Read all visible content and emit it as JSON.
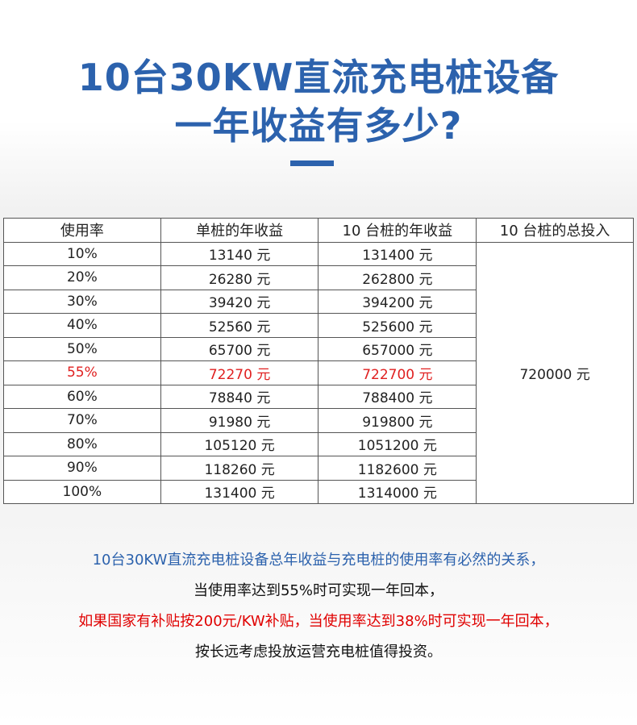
{
  "title": {
    "line1": "10台30KW直流充电桩设备",
    "line2": "一年收益有多少?"
  },
  "table": {
    "headers": [
      "使用率",
      "单桩的年收益",
      "10 台桩的年收益",
      "10 台桩的总投入"
    ],
    "rows": [
      {
        "rate": "10%",
        "single": "13140 元",
        "ten": "131400 元",
        "highlight": false
      },
      {
        "rate": "20%",
        "single": "26280 元",
        "ten": "262800 元",
        "highlight": false
      },
      {
        "rate": "30%",
        "single": "39420 元",
        "ten": "394200 元",
        "highlight": false
      },
      {
        "rate": "40%",
        "single": "52560 元",
        "ten": "525600 元",
        "highlight": false
      },
      {
        "rate": "50%",
        "single": "65700 元",
        "ten": "657000 元",
        "highlight": false
      },
      {
        "rate": "55%",
        "single": "72270 元",
        "ten": "722700 元",
        "highlight": true
      },
      {
        "rate": "60%",
        "single": "78840 元",
        "ten": "788400 元",
        "highlight": false
      },
      {
        "rate": "70%",
        "single": "91980 元",
        "ten": "919800 元",
        "highlight": false
      },
      {
        "rate": "80%",
        "single": "105120 元",
        "ten": "1051200 元",
        "highlight": false
      },
      {
        "rate": "90%",
        "single": "118260 元",
        "ten": "1182600 元",
        "highlight": false
      },
      {
        "rate": "100%",
        "single": "131400 元",
        "ten": "1314000 元",
        "highlight": false
      }
    ],
    "total_investment": "720000 元"
  },
  "footer": {
    "line1": "10台30KW直流充电桩设备总年收益与充电桩的使用率有必然的关系，",
    "line2": "当使用率达到55%时可实现一年回本，",
    "line3": "如果国家有补贴按200元/KW补贴，当使用率达到38%时可实现一年回本，",
    "line4": "按长远考虑投放运营充电桩值得投资。"
  },
  "colors": {
    "title_blue": "#2c62ad",
    "highlight_red": "#e02020"
  }
}
